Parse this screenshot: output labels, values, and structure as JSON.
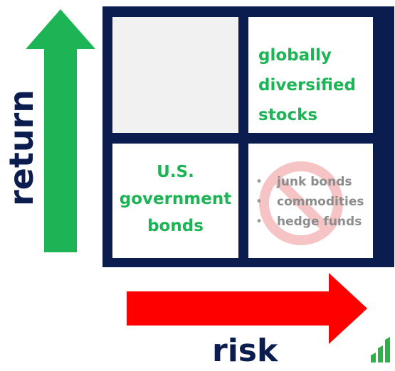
{
  "axes": {
    "y_label": "return",
    "x_label": "risk"
  },
  "quadrants": {
    "top_left": "",
    "top_right": [
      "globally",
      "diversified",
      "stocks"
    ],
    "bottom_left": [
      "U.S.",
      "government",
      "bonds"
    ],
    "bottom_right": {
      "items": [
        "junk bonds",
        "commodities",
        "hedge funds"
      ],
      "overlay_icon": "no-sign-icon"
    }
  },
  "colors": {
    "navy": "#0a1d4e",
    "green": "#1db455",
    "red": "#ff0000",
    "gray_text": "#8c8c8c",
    "no_sign": "#f6c4c4"
  },
  "icons": {
    "up_arrow": "up-arrow-icon",
    "right_arrow": "right-arrow-icon",
    "logo": "bar-chart-logo-icon"
  }
}
